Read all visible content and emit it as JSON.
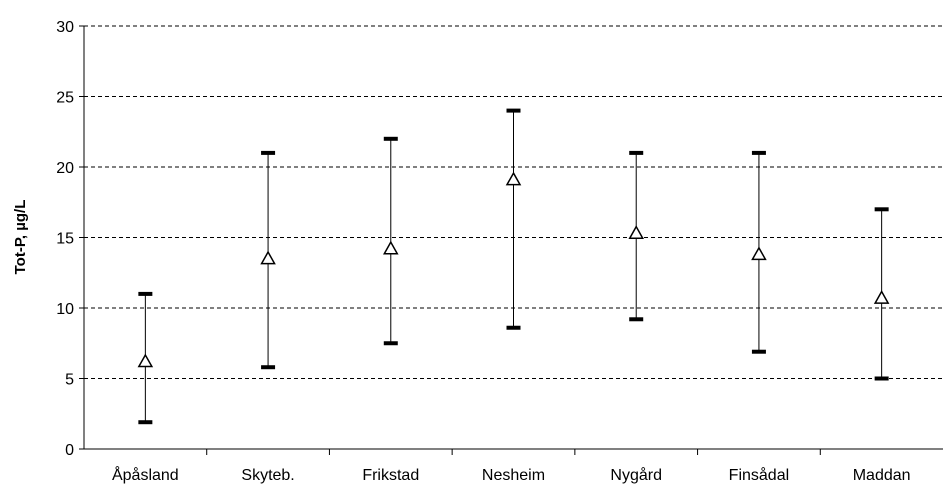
{
  "chart_data": {
    "type": "scatter",
    "title": "",
    "xlabel": "",
    "ylabel": "Tot-P, µg/L",
    "ylim": [
      0,
      30
    ],
    "yticks": [
      0,
      5,
      10,
      15,
      20,
      25,
      30
    ],
    "grid": "horizontal dashed",
    "legend": "none",
    "categories": [
      "Åpåsland",
      "Skyteb.",
      "Frikstad",
      "Nesheim",
      "Nygård",
      "Finsådal",
      "Maddan"
    ],
    "mean": [
      6.2,
      13.5,
      14.2,
      19.1,
      15.3,
      13.8,
      10.7
    ],
    "max": [
      11,
      21,
      22,
      24,
      21,
      21,
      17
    ],
    "min": [
      1.9,
      5.8,
      7.5,
      8.6,
      9.2,
      6.9,
      5.0
    ],
    "colors": {
      "marker_stroke": "#000000",
      "marker_fill": "#ffffff",
      "range_line": "#000000",
      "grid": "#000000"
    }
  }
}
